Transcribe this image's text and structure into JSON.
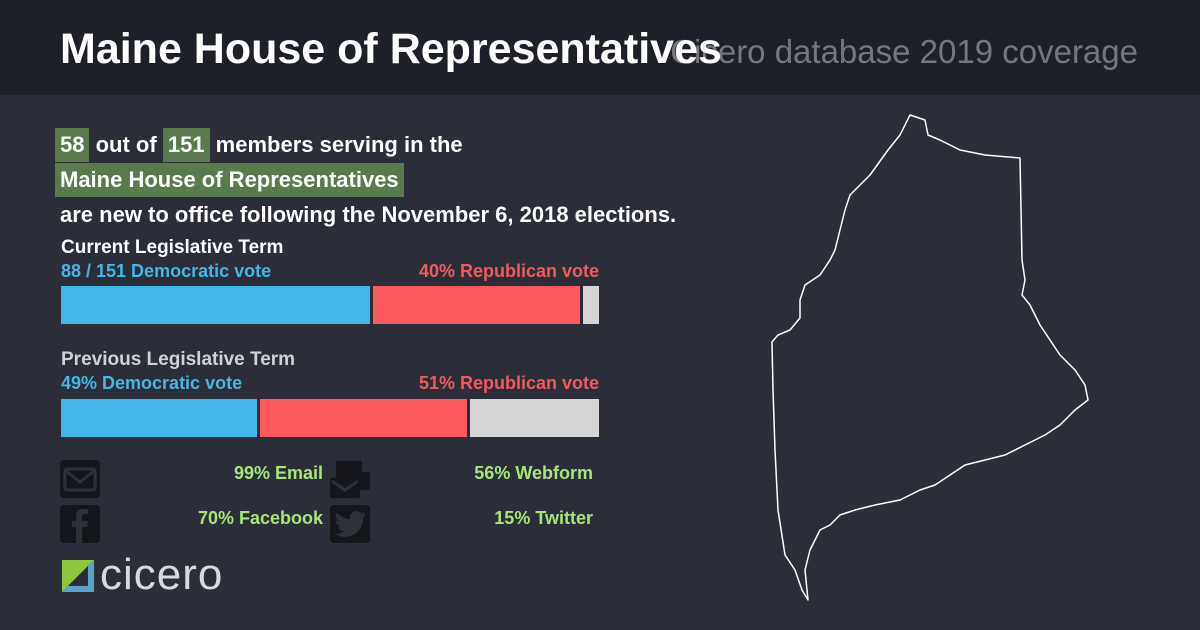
{
  "header": {
    "title": "Maine House of Representatives",
    "subtitle": "Cicero database 2019 coverage"
  },
  "intro": {
    "new_members": "58",
    "out_of": "out of",
    "total_members": "151",
    "line1_rest": "members serving in the",
    "body_name": "Maine House of Representatives",
    "line3": "are new to office following the November 6, 2018 elections."
  },
  "chart_data": [
    {
      "type": "bar",
      "title": "Current Legislative Term",
      "dem_label": "88 / 151 Democratic vote",
      "rep_label": "40% Republican vote",
      "series": [
        {
          "name": "Democratic",
          "values": [
            58
          ]
        },
        {
          "name": "Republican",
          "values": [
            39
          ]
        },
        {
          "values": [
            3
          ]
        }
      ],
      "ylim": [
        0,
        100
      ]
    },
    {
      "type": "bar",
      "title": "Previous Legislative Term",
      "dem_label": "49% Democratic vote",
      "rep_label": "51% Republican vote",
      "series": [
        {
          "name": "Democratic",
          "values": [
            37
          ]
        },
        {
          "name": "Republican",
          "values": [
            39
          ]
        },
        {
          "values": [
            24
          ]
        }
      ],
      "ylim": [
        0,
        100
      ]
    }
  ],
  "contact": {
    "email": "99% Email",
    "webform": "56% Webform",
    "facebook": "70% Facebook",
    "twitter": "15% Twitter"
  },
  "brand": {
    "logo_text": "cicero"
  },
  "colors": {
    "democratic": "#45b6e8",
    "republican": "#fd5a5f",
    "other": "#d5d5d5",
    "highlight": "#5a7a4e",
    "contact_green": "#a9e47b"
  },
  "icons": [
    "email-icon",
    "webform-icon",
    "facebook-icon",
    "twitter-icon",
    "maine-state-outline",
    "cicero-logo-icon"
  ]
}
